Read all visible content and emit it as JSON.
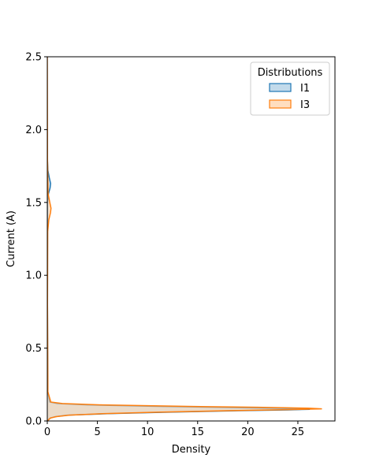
{
  "chart_data": {
    "type": "area",
    "orientation": "horizontal-density",
    "xlabel": "Density",
    "ylabel": "Current (A)",
    "xlim": [
      0,
      28.7
    ],
    "ylim": [
      0,
      2.5
    ],
    "xticks": [
      0,
      5,
      10,
      15,
      20,
      25
    ],
    "yticks": [
      0.0,
      0.5,
      1.0,
      1.5,
      2.0,
      2.5
    ],
    "xtick_labels": [
      "0",
      "5",
      "10",
      "15",
      "20",
      "25"
    ],
    "ytick_labels": [
      "0.0",
      "0.5",
      "1.0",
      "1.5",
      "2.0",
      "2.5"
    ],
    "grid": false,
    "legend": {
      "title": "Distributions",
      "placement": "top-right",
      "entries": [
        "I1",
        "I3"
      ]
    },
    "series": [
      {
        "name": "I1",
        "color": "#1f77b4",
        "fill": "#aecde4",
        "points": [
          {
            "current": 0.0,
            "density": 0.0
          },
          {
            "current": 0.02,
            "density": 0.3
          },
          {
            "current": 0.03,
            "density": 0.8
          },
          {
            "current": 0.04,
            "density": 2.0
          },
          {
            "current": 0.05,
            "density": 6.0
          },
          {
            "current": 0.06,
            "density": 12.0
          },
          {
            "current": 0.07,
            "density": 19.0
          },
          {
            "current": 0.076,
            "density": 24.0
          },
          {
            "current": 0.08,
            "density": 26.2
          },
          {
            "current": 0.084,
            "density": 25.0
          },
          {
            "current": 0.09,
            "density": 20.0
          },
          {
            "current": 0.1,
            "density": 11.0
          },
          {
            "current": 0.11,
            "density": 4.0
          },
          {
            "current": 0.12,
            "density": 1.0
          },
          {
            "current": 0.13,
            "density": 0.25
          },
          {
            "current": 0.2,
            "density": 0.05
          },
          {
            "current": 0.8,
            "density": 0.02
          },
          {
            "current": 1.5,
            "density": 0.03
          },
          {
            "current": 1.56,
            "density": 0.12
          },
          {
            "current": 1.6,
            "density": 0.28
          },
          {
            "current": 1.63,
            "density": 0.33
          },
          {
            "current": 1.67,
            "density": 0.2
          },
          {
            "current": 1.72,
            "density": 0.06
          },
          {
            "current": 1.8,
            "density": 0.01
          },
          {
            "current": 2.0,
            "density": 0.0
          }
        ]
      },
      {
        "name": "I3",
        "color": "#ff7f0e",
        "fill": "#ffd3aa",
        "points": [
          {
            "current": 0.0,
            "density": 0.0
          },
          {
            "current": 0.02,
            "density": 0.3
          },
          {
            "current": 0.03,
            "density": 0.9
          },
          {
            "current": 0.04,
            "density": 2.2
          },
          {
            "current": 0.05,
            "density": 5.5
          },
          {
            "current": 0.06,
            "density": 11.0
          },
          {
            "current": 0.07,
            "density": 18.0
          },
          {
            "current": 0.078,
            "density": 24.0
          },
          {
            "current": 0.083,
            "density": 27.4
          },
          {
            "current": 0.088,
            "density": 26.0
          },
          {
            "current": 0.094,
            "density": 21.0
          },
          {
            "current": 0.1,
            "density": 14.0
          },
          {
            "current": 0.11,
            "density": 5.5
          },
          {
            "current": 0.12,
            "density": 1.5
          },
          {
            "current": 0.13,
            "density": 0.35
          },
          {
            "current": 0.2,
            "density": 0.06
          },
          {
            "current": 0.8,
            "density": 0.02
          },
          {
            "current": 1.3,
            "density": 0.04
          },
          {
            "current": 1.38,
            "density": 0.15
          },
          {
            "current": 1.43,
            "density": 0.32
          },
          {
            "current": 1.46,
            "density": 0.37
          },
          {
            "current": 1.5,
            "density": 0.25
          },
          {
            "current": 1.56,
            "density": 0.08
          },
          {
            "current": 1.8,
            "density": 0.02
          },
          {
            "current": 2.2,
            "density": 0.01
          },
          {
            "current": 2.5,
            "density": 0.0
          }
        ]
      }
    ]
  }
}
